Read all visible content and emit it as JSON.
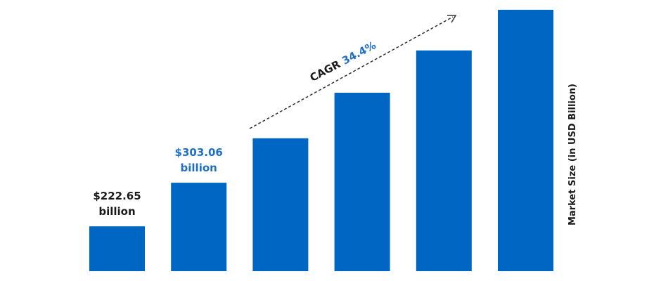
{
  "chart_data": {
    "type": "bar",
    "categories": [
      null,
      null,
      null,
      null,
      null,
      null
    ],
    "values": [
      222.65,
      303.06,
      385,
      469,
      547,
      622
    ],
    "value_labels": [
      "$222.65 billion",
      "$303.06 billion",
      null,
      null,
      null,
      null
    ],
    "value_label_colors": [
      "#1a1a1a",
      "#1f6fc5",
      null,
      null,
      null,
      null
    ],
    "color": "#0066c4",
    "ylim": [
      140,
      640
    ],
    "y_label": "Market Size (in USD Billion)",
    "annotation": {
      "text": "CAGR",
      "value_text": "34.4%",
      "color": "#1f6fc5"
    }
  }
}
